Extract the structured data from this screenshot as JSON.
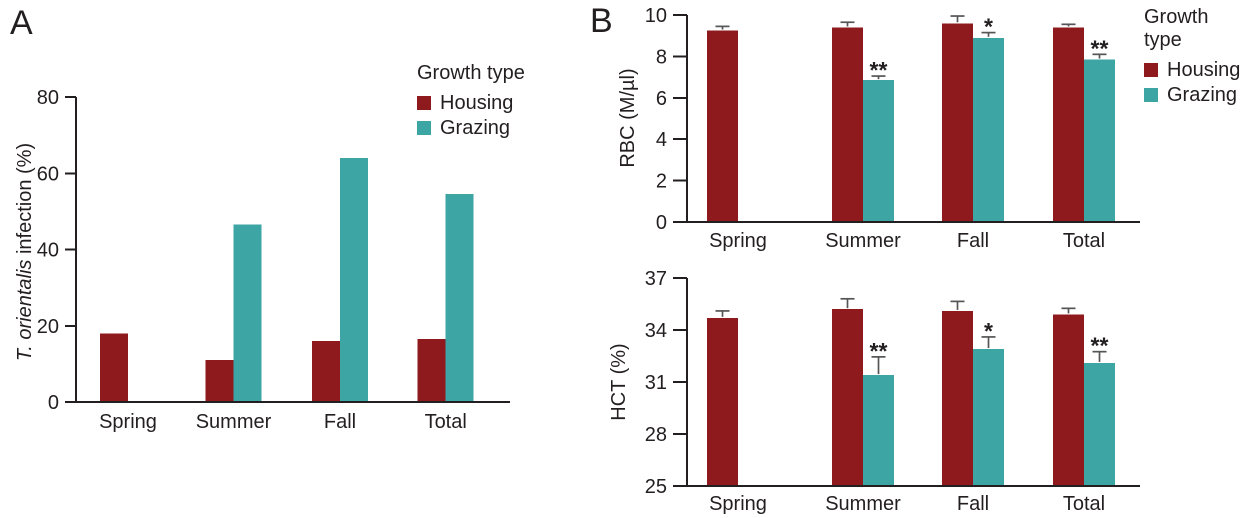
{
  "colors": {
    "housing": "#8E1A1D",
    "grazing": "#3EA5A5",
    "axis": "#231F20",
    "error_bar": "#555555"
  },
  "panelA": {
    "label": "A"
  },
  "panelB": {
    "label": "B"
  },
  "legend": {
    "title": "Growth type",
    "items": [
      {
        "label": "Housing"
      },
      {
        "label": "Grazing"
      }
    ]
  },
  "chart_data": [
    {
      "id": "infection",
      "panel": "A",
      "type": "bar",
      "title": "",
      "ylabel": "T. orientalis infection (%)",
      "ylabel_parts": [
        {
          "text": "T. orientalis",
          "italic": true
        },
        {
          "text": " infection (%)",
          "italic": false
        }
      ],
      "categories": [
        "Spring",
        "Summer",
        "Fall",
        "Total"
      ],
      "series": [
        {
          "name": "Housing",
          "color": "#8E1A1D",
          "values": [
            18,
            11,
            16,
            16.5
          ]
        },
        {
          "name": "Grazing",
          "color": "#3EA5A5",
          "values": [
            null,
            46.5,
            64,
            54.5
          ]
        }
      ],
      "ylim": [
        0,
        80
      ],
      "yticks": [
        0,
        20,
        40,
        60,
        80
      ],
      "grid": false,
      "legend_position": "top-right-inside"
    },
    {
      "id": "rbc",
      "panel": "B",
      "type": "bar",
      "title": "",
      "ylabel": "RBC (M/µl)",
      "ylabel_parts": [
        {
          "text": "RBC (M/µl)",
          "italic": false
        }
      ],
      "categories": [
        "Spring",
        "Summer",
        "Fall",
        "Total"
      ],
      "series": [
        {
          "name": "Housing",
          "color": "#8E1A1D",
          "values": [
            9.25,
            9.4,
            9.6,
            9.4
          ],
          "errors": [
            0.2,
            0.25,
            0.35,
            0.15
          ]
        },
        {
          "name": "Grazing",
          "color": "#3EA5A5",
          "values": [
            null,
            6.85,
            8.9,
            7.85
          ],
          "errors": [
            null,
            0.2,
            0.25,
            0.25
          ]
        }
      ],
      "annotations": [
        {
          "category": "Summer",
          "series": "Grazing",
          "text": "**"
        },
        {
          "category": "Fall",
          "series": "Grazing",
          "text": "*"
        },
        {
          "category": "Total",
          "series": "Grazing",
          "text": "**"
        }
      ],
      "ylim": [
        0,
        10
      ],
      "yticks": [
        0,
        2,
        4,
        6,
        8,
        10
      ],
      "grid": false,
      "legend_position": "right-outside"
    },
    {
      "id": "hct",
      "panel": "B",
      "type": "bar",
      "title": "",
      "ylabel": "HCT (%)",
      "ylabel_parts": [
        {
          "text": "HCT (%)",
          "italic": false
        }
      ],
      "categories": [
        "Spring",
        "Summer",
        "Fall",
        "Total"
      ],
      "series": [
        {
          "name": "Housing",
          "color": "#8E1A1D",
          "values": [
            34.7,
            35.2,
            35.1,
            34.9
          ],
          "errors": [
            0.4,
            0.6,
            0.55,
            0.35
          ]
        },
        {
          "name": "Grazing",
          "color": "#3EA5A5",
          "values": [
            null,
            31.4,
            32.9,
            32.1
          ],
          "errors": [
            null,
            1.05,
            0.7,
            0.65
          ]
        }
      ],
      "annotations": [
        {
          "category": "Summer",
          "series": "Grazing",
          "text": "**"
        },
        {
          "category": "Fall",
          "series": "Grazing",
          "text": "*"
        },
        {
          "category": "Total",
          "series": "Grazing",
          "text": "**"
        }
      ],
      "ylim": [
        25,
        37
      ],
      "yticks": [
        25,
        28,
        31,
        34,
        37
      ],
      "grid": false,
      "legend_position": "none"
    }
  ]
}
